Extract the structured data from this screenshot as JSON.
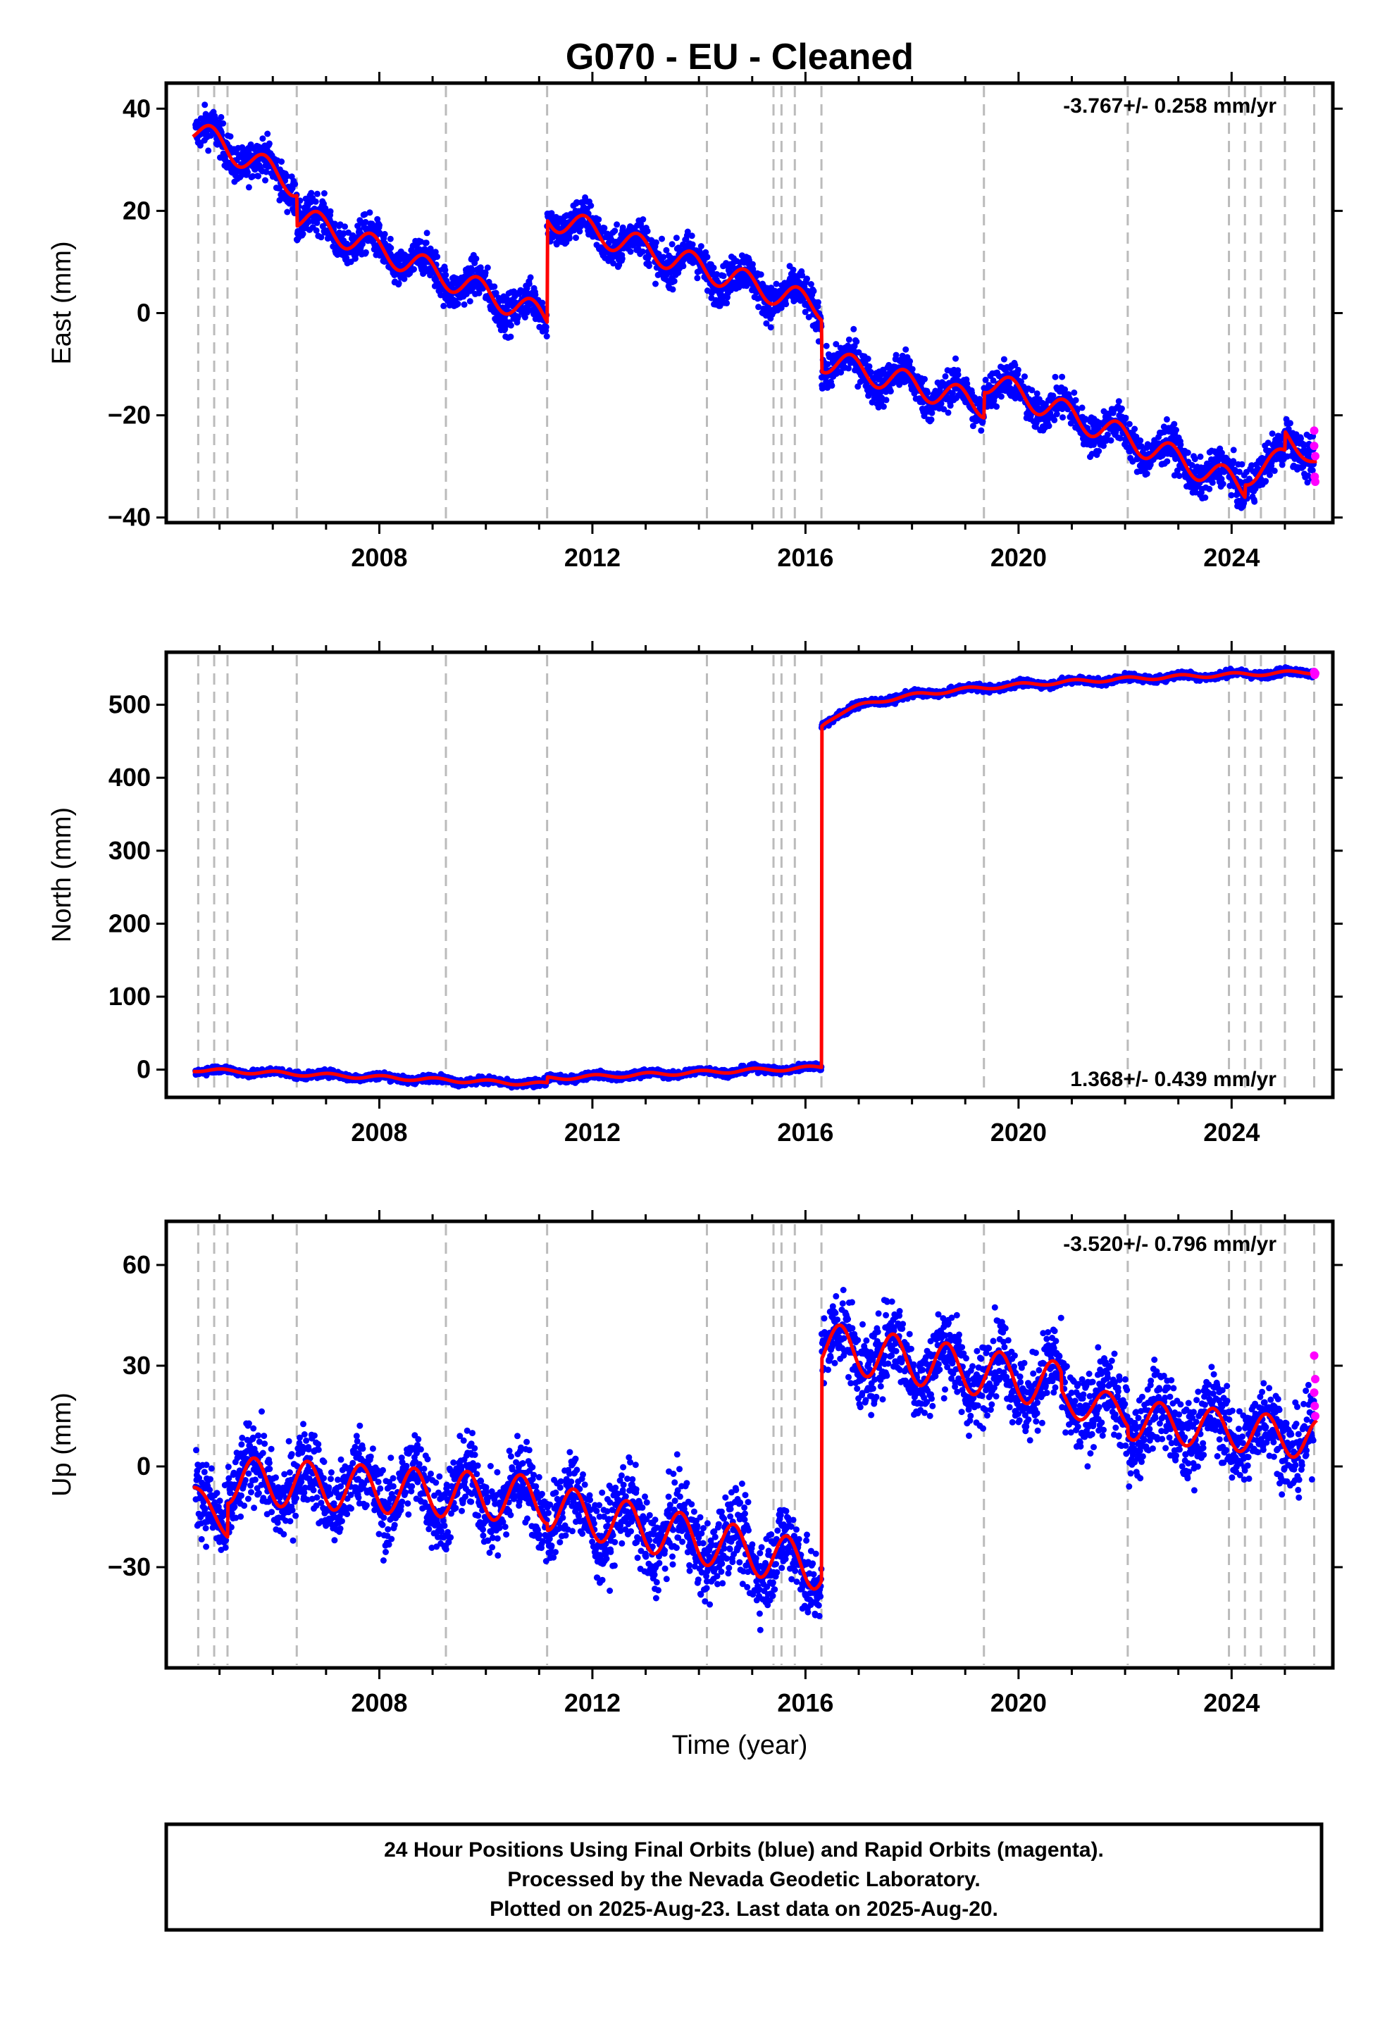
{
  "title": "G070  - EU - Cleaned",
  "xlabel": "Time (year)",
  "footer": {
    "line1": "24 Hour Positions Using Final Orbits (blue) and Rapid Orbits (magenta).",
    "line2": "Processed by the Nevada Geodetic Laboratory.",
    "line3": "Plotted on 2025-Aug-23. Last data on 2025-Aug-20."
  },
  "colors": {
    "final": "#0000ff",
    "rapid": "#ff00ff",
    "model": "#ff0000",
    "steps": "#bbbbbb"
  },
  "chart_data": [
    {
      "type": "scatter",
      "id": "east",
      "ylabel": "East (mm)",
      "rate": "-3.767+/- 0.258 mm/yr",
      "rate_position": "top-right",
      "xlim": [
        2004.0,
        2025.9
      ],
      "ylim": [
        -41,
        45
      ],
      "yticks": [
        40,
        20,
        0,
        -20,
        -40
      ],
      "ytick_labels": [
        "40",
        "20",
        "0",
        "−20",
        "−40"
      ],
      "xticks": [
        2008,
        2012,
        2016,
        2020,
        2024
      ],
      "xtick_labels": [
        "2008",
        "2012",
        "2016",
        "2020",
        "2024"
      ],
      "step_epochs": [
        2004.6,
        2004.9,
        2005.15,
        2006.45,
        2009.25,
        2011.15,
        2014.15,
        2015.4,
        2015.55,
        2015.8,
        2016.3,
        2019.35,
        2022.05,
        2023.95,
        2024.25,
        2024.55,
        2025.0,
        2025.55
      ],
      "model_segments": [
        {
          "x0": 2004.5,
          "x1": 2006.45,
          "y0": 36,
          "y1": 25,
          "amp": 2.5,
          "phase": 0.4
        },
        {
          "x0": 2006.45,
          "x1": 2011.15,
          "y0": 19,
          "y1": -1,
          "amp": 2.5,
          "phase": 0.4
        },
        {
          "x0": 2011.15,
          "x1": 2016.3,
          "y0": 19,
          "y1": 1,
          "amp": 2.5,
          "phase": 0.4
        },
        {
          "x0": 2016.3,
          "x1": 2019.35,
          "y0": -9,
          "y1": -18,
          "amp": 2.5,
          "phase": 0.4
        },
        {
          "x0": 2019.35,
          "x1": 2024.25,
          "y0": -13,
          "y1": -34,
          "amp": 2.5,
          "phase": 0.4
        },
        {
          "x0": 2024.25,
          "x1": 2025.0,
          "y0": -32,
          "y1": -28,
          "amp": 2.0,
          "phase": 0.4
        },
        {
          "x0": 2025.0,
          "x1": 2025.6,
          "y0": -24,
          "y1": -29,
          "amp": 1.5,
          "phase": 0.4
        }
      ],
      "rapid_points": [
        [
          2025.55,
          -23
        ],
        [
          2025.55,
          -26
        ],
        [
          2025.56,
          -32
        ],
        [
          2025.57,
          -33
        ],
        [
          2025.57,
          -28
        ]
      ]
    },
    {
      "type": "scatter",
      "id": "north",
      "ylabel": "North (mm)",
      "rate": "1.368+/- 0.439 mm/yr",
      "rate_position": "bottom-right",
      "xlim": [
        2004.0,
        2025.9
      ],
      "ylim": [
        -38,
        572
      ],
      "yticks": [
        500,
        400,
        300,
        200,
        100,
        0
      ],
      "ytick_labels": [
        "500",
        "400",
        "300",
        "200",
        "100",
        "0"
      ],
      "xticks": [
        2008,
        2012,
        2016,
        2020,
        2024
      ],
      "xtick_labels": [
        "2008",
        "2012",
        "2016",
        "2020",
        "2024"
      ],
      "step_epochs": [
        2004.6,
        2004.9,
        2005.15,
        2006.45,
        2009.25,
        2011.15,
        2014.15,
        2015.4,
        2015.55,
        2015.8,
        2016.3,
        2019.35,
        2022.05,
        2023.95,
        2024.25,
        2024.55,
        2025.0,
        2025.55
      ],
      "model_segments": [
        {
          "x0": 2004.5,
          "x1": 2011.15,
          "y0": 0,
          "y1": -20,
          "amp": 2.5,
          "phase": 0.2
        },
        {
          "x0": 2011.15,
          "x1": 2016.3,
          "y0": -12,
          "y1": 3,
          "amp": 2.5,
          "phase": 0.2
        },
        {
          "x0": 2016.3,
          "x1": 2025.6,
          "y0": 470,
          "y1": 545,
          "amp": 2.5,
          "phase": 0.2,
          "log": true
        }
      ],
      "rapid_points": [
        [
          2025.55,
          545
        ],
        [
          2025.56,
          541
        ],
        [
          2025.57,
          543
        ]
      ]
    },
    {
      "type": "scatter",
      "id": "up",
      "ylabel": "Up (mm)",
      "rate": "-3.520+/- 0.796 mm/yr",
      "rate_position": "top-right",
      "xlim": [
        2004.0,
        2025.9
      ],
      "ylim": [
        -60,
        73
      ],
      "yticks": [
        60,
        30,
        0,
        -30
      ],
      "ytick_labels": [
        "60",
        "30",
        "0",
        "−30"
      ],
      "xticks": [
        2008,
        2012,
        2016,
        2020,
        2024
      ],
      "xtick_labels": [
        "2008",
        "2012",
        "2016",
        "2020",
        "2024"
      ],
      "step_epochs": [
        2004.6,
        2004.9,
        2005.15,
        2006.45,
        2009.25,
        2011.15,
        2014.15,
        2015.4,
        2015.55,
        2015.8,
        2016.3,
        2019.35,
        2022.05,
        2023.95,
        2024.25,
        2024.55,
        2025.0,
        2025.55
      ],
      "model_segments": [
        {
          "x0": 2004.5,
          "x1": 2005.15,
          "y0": -8,
          "y1": -18,
          "amp": 3,
          "phase": 0.6
        },
        {
          "x0": 2005.15,
          "x1": 2011.15,
          "y0": -4,
          "y1": -10,
          "amp": 7,
          "phase": 0.6
        },
        {
          "x0": 2011.15,
          "x1": 2016.3,
          "y0": -12,
          "y1": -30,
          "amp": 7,
          "phase": 0.6
        },
        {
          "x0": 2016.3,
          "x1": 2020.8,
          "y0": 36,
          "y1": 24,
          "amp": 7,
          "phase": 0.6
        },
        {
          "x0": 2020.8,
          "x1": 2022.05,
          "y0": 20,
          "y1": 16,
          "amp": 5,
          "phase": 0.6
        },
        {
          "x0": 2022.05,
          "x1": 2025.6,
          "y0": 14,
          "y1": 8,
          "amp": 6,
          "phase": 0.6
        }
      ],
      "rapid_points": [
        [
          2025.55,
          33
        ],
        [
          2025.55,
          22
        ],
        [
          2025.56,
          18
        ],
        [
          2025.57,
          15
        ],
        [
          2025.57,
          26
        ]
      ]
    }
  ]
}
